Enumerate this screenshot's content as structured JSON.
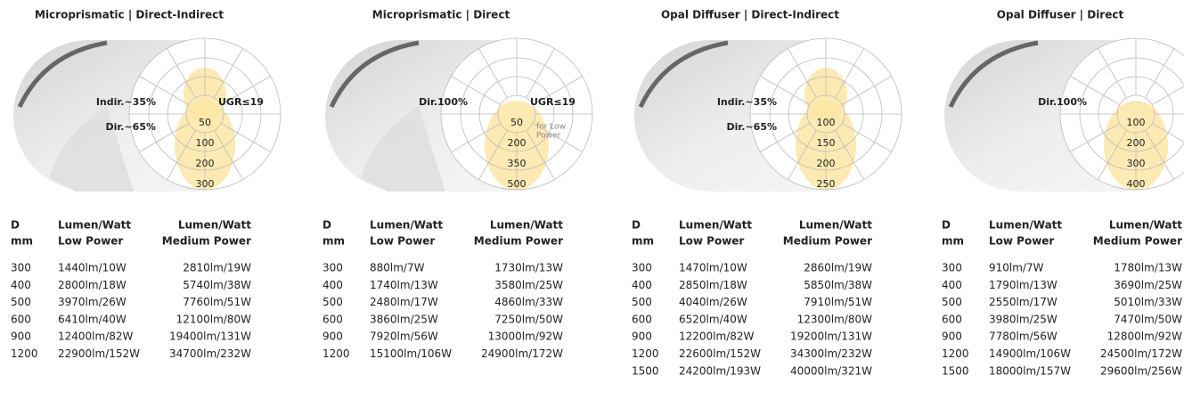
{
  "panels": [
    {
      "title": "Microprismatic | Direct-Indirect",
      "diagram": {
        "indirect": "Indir.~35%",
        "direct": "Dir.~65%",
        "ugr": "UGR≤19",
        "rings": [
          "50",
          "100",
          "200",
          "300"
        ]
      },
      "table": {
        "header": [
          [
            "D",
            "mm"
          ],
          [
            "Lumen/Watt",
            "Low Power"
          ],
          [
            "Lumen/Watt",
            "Medium Power"
          ]
        ],
        "rows": [
          [
            "300",
            "1440lm/10W",
            "2810lm/19W"
          ],
          [
            "400",
            "2800lm/18W",
            "5740lm/38W"
          ],
          [
            "500",
            "3970lm/26W",
            "7760lm/51W"
          ],
          [
            "600",
            "6410lm/40W",
            "12100lm/80W"
          ],
          [
            "900",
            "12400lm/82W",
            "19400lm/131W"
          ],
          [
            "1200",
            "22900lm/152W",
            "34700lm/232W"
          ]
        ]
      }
    },
    {
      "title": "Microprismatic | Direct",
      "diagram": {
        "direct": "Dir.100%",
        "ugr": "UGR≤19",
        "note": [
          "for Low",
          "Power"
        ],
        "rings": [
          "50",
          "200",
          "350",
          "500"
        ]
      },
      "table": {
        "header": [
          [
            "D",
            "mm"
          ],
          [
            "Lumen/Watt",
            "Low Power"
          ],
          [
            "Lumen/Watt",
            "Medium Power"
          ]
        ],
        "rows": [
          [
            "300",
            "880lm/7W",
            "1730lm/13W"
          ],
          [
            "400",
            "1740lm/13W",
            "3580lm/25W"
          ],
          [
            "500",
            "2480lm/17W",
            "4860lm/33W"
          ],
          [
            "600",
            "3860lm/25W",
            "7250lm/50W"
          ],
          [
            "900",
            "7920lm/56W",
            "13000lm/92W"
          ],
          [
            "1200",
            "15100lm/106W",
            "24900lm/172W"
          ]
        ]
      }
    },
    {
      "title": "Opal Diffuser | Direct-Indirect",
      "diagram": {
        "indirect": "Indir.~35%",
        "direct": "Dir.~65%",
        "rings": [
          "100",
          "150",
          "200",
          "250"
        ]
      },
      "table": {
        "header": [
          [
            "D",
            "mm"
          ],
          [
            "Lumen/Watt",
            "Low Power"
          ],
          [
            "Lumen/Watt",
            "Medium Power"
          ]
        ],
        "rows": [
          [
            "300",
            "1470lm/10W",
            "2860lm/19W"
          ],
          [
            "400",
            "2850lm/18W",
            "5850lm/38W"
          ],
          [
            "500",
            "4040lm/26W",
            "7910lm/51W"
          ],
          [
            "600",
            "6520lm/40W",
            "12300lm/80W"
          ],
          [
            "900",
            "12200lm/82W",
            "19200lm/131W"
          ],
          [
            "1200",
            "22600lm/152W",
            "34300lm/232W"
          ],
          [
            "1500",
            "24200lm/193W",
            "40000lm/321W"
          ]
        ]
      }
    },
    {
      "title": "Opal Diffuser | Direct",
      "diagram": {
        "direct": "Dir.100%",
        "rings": [
          "100",
          "200",
          "300",
          "400"
        ]
      },
      "table": {
        "header": [
          [
            "D",
            "mm"
          ],
          [
            "Lumen/Watt",
            "Low Power"
          ],
          [
            "Lumen/Watt",
            "Medium Power"
          ]
        ],
        "rows": [
          [
            "300",
            "910lm/7W",
            "1780lm/13W"
          ],
          [
            "400",
            "1790lm/13W",
            "3690lm/25W"
          ],
          [
            "500",
            "2550lm/17W",
            "5010lm/33W"
          ],
          [
            "600",
            "3980lm/25W",
            "7470lm/50W"
          ],
          [
            "900",
            "7780lm/56W",
            "12800lm/92W"
          ],
          [
            "1200",
            "14900lm/106W",
            "24500lm/172W"
          ],
          [
            "1500",
            "18000lm/157W",
            "29600lm/256W"
          ]
        ]
      }
    }
  ]
}
